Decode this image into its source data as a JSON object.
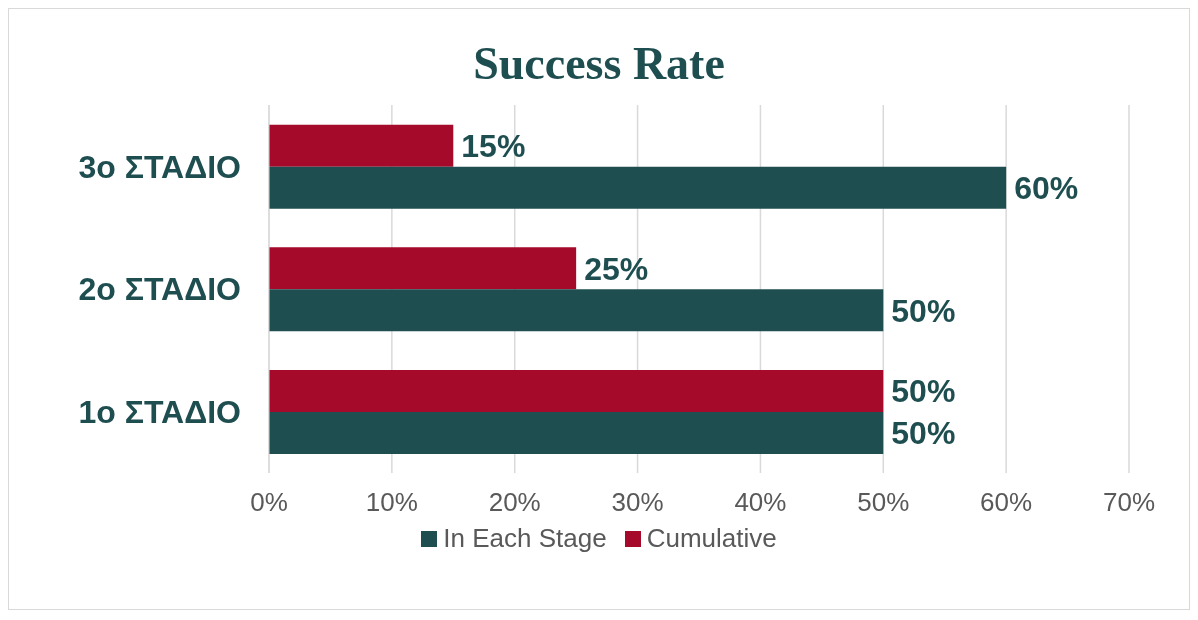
{
  "chart_data": {
    "type": "bar",
    "orientation": "horizontal",
    "title": "Success Rate",
    "categories": [
      "3o ΣΤΑΔΙΟ",
      "2o ΣΤΑΔΙΟ",
      "1o ΣΤΑΔΙΟ"
    ],
    "series": [
      {
        "name": "In Each Stage",
        "color": "#1f4e50",
        "values": [
          60,
          50,
          50
        ],
        "value_labels": [
          "60%",
          "50%",
          "50%"
        ]
      },
      {
        "name": "Cumulative",
        "color": "#a50a2a",
        "values": [
          15,
          25,
          50
        ],
        "value_labels": [
          "15%",
          "25%",
          "50%"
        ]
      }
    ],
    "xlim": [
      0,
      70
    ],
    "xticks": [
      {
        "value": 0,
        "label": "0%"
      },
      {
        "value": 10,
        "label": "10%"
      },
      {
        "value": 20,
        "label": "20%"
      },
      {
        "value": 30,
        "label": "30%"
      },
      {
        "value": 40,
        "label": "40%"
      },
      {
        "value": 50,
        "label": "50%"
      },
      {
        "value": 60,
        "label": "60%"
      },
      {
        "value": 70,
        "label": "70%"
      }
    ],
    "grid": "x",
    "legend": "bottom"
  }
}
